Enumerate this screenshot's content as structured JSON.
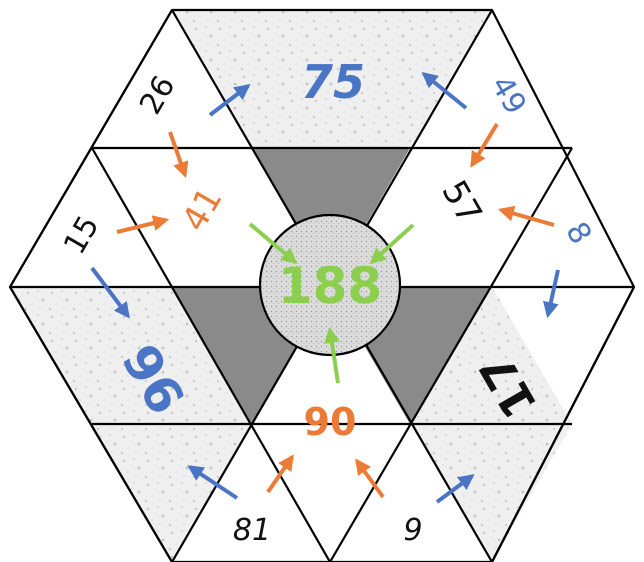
{
  "puzzle": {
    "center_value": "188",
    "numbers": {
      "top_left_outer": "26",
      "top_middle": "75",
      "top_right_outer": "49",
      "left_outer": "15",
      "upper_left_inner": "41",
      "upper_right_inner": "57",
      "right_outer": "8",
      "lower_left_big": "96",
      "lower_right_big": "17",
      "bottom_middle": "90",
      "bottom_left_outer": "81",
      "bottom_right_outer": "9"
    }
  },
  "colors": {
    "blue": "#4a74c4",
    "orange": "#ec7b35",
    "green": "#8ccf4f",
    "black": "#111111",
    "dark_gray": "#8a8a8a",
    "speckle_light": "#ececec",
    "center_fill": "#d9d9d9"
  }
}
